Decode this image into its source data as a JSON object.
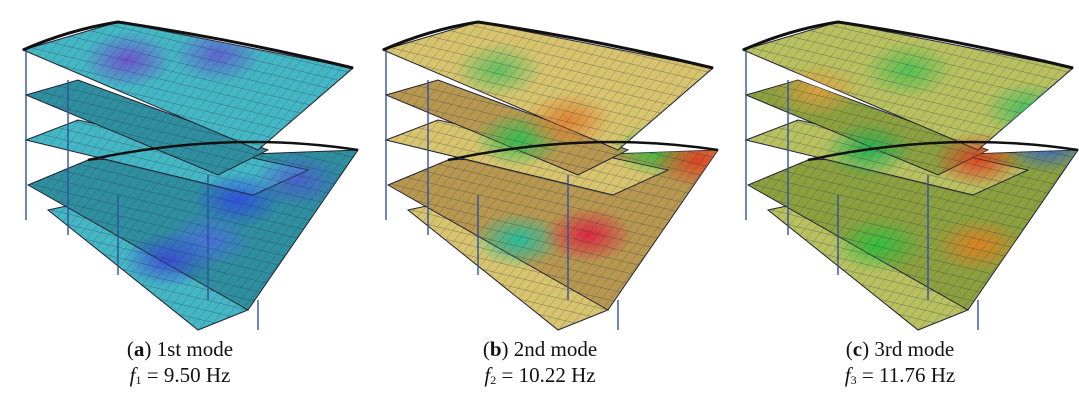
{
  "panels": [
    {
      "open": "(",
      "letter": "a",
      "caption": ") 1st mode",
      "symbol": "f",
      "subscript": "1",
      "equation": " = 9.50 Hz"
    },
    {
      "open": "(",
      "letter": "b",
      "caption": ") 2nd mode",
      "symbol": "f",
      "subscript": "2",
      "equation": " = 10.22 Hz"
    },
    {
      "open": "(",
      "letter": "c",
      "caption": ") 3rd mode",
      "symbol": "f",
      "subscript": "3",
      "equation": " = 11.76 Hz"
    }
  ]
}
